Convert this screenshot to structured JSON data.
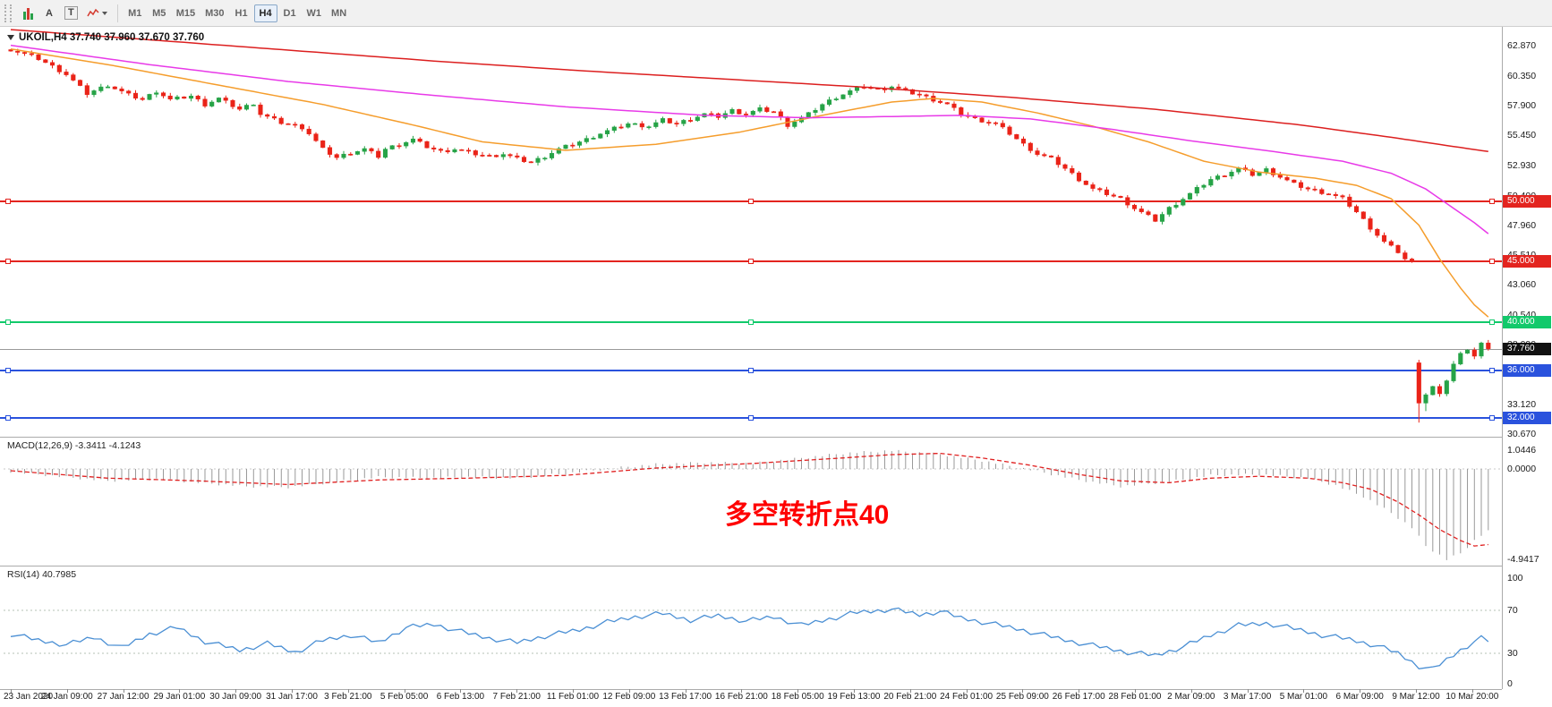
{
  "toolbar": {
    "tools": [
      {
        "name": "chart-type-button",
        "label": ""
      },
      {
        "name": "cursor-tool-button",
        "label": "A"
      },
      {
        "name": "text-tool-button",
        "label": "T"
      },
      {
        "name": "indicators-button",
        "label": ""
      }
    ],
    "timeframes": [
      "M1",
      "M5",
      "M15",
      "M30",
      "H1",
      "H4",
      "D1",
      "W1",
      "MN"
    ],
    "active_timeframe": "H4"
  },
  "chart_header": {
    "symbol_label": "UKOIL,H4 37.740 37.960 37.670 37.760"
  },
  "indicator_labels": {
    "macd": "MACD(12,26,9) -3.3411 -4.1243",
    "rsi": "RSI(14) 40.7985"
  },
  "annotation": {
    "text": "多空转折点40",
    "color": "#ff0000"
  },
  "colors": {
    "up": "#26a347",
    "down": "#ea2318",
    "ma_fast": "#f59d2c",
    "ma_mid": "#e83ae8",
    "ma_slow": "#dc1f1f",
    "macd_hist": "#9a9a9a",
    "macd_signal": "#e02020",
    "rsi": "#4a8fd4",
    "hline_red": "#e3241f",
    "hline_green": "#12c96b",
    "hline_blue": "#2a52dd",
    "price_badge_bg": "#111111"
  },
  "chart_data": {
    "type": "candlestick",
    "symbol": "UKOIL",
    "timeframe": "H4",
    "current_ohlc": {
      "open": 37.74,
      "high": 37.96,
      "low": 37.67,
      "close": 37.76
    },
    "bars": 214,
    "close_anchors": [
      [
        0,
        62.55
      ],
      [
        4,
        61.8
      ],
      [
        8,
        60.5
      ],
      [
        11,
        58.9
      ],
      [
        14,
        59.6
      ],
      [
        17,
        58.8
      ],
      [
        19,
        58.4
      ],
      [
        21,
        59.1
      ],
      [
        23,
        58.4
      ],
      [
        26,
        58.7
      ],
      [
        28,
        58.0
      ],
      [
        30,
        58.5
      ],
      [
        33,
        57.6
      ],
      [
        35,
        58.1
      ],
      [
        36,
        57.2
      ],
      [
        39,
        56.5
      ],
      [
        42,
        56.1
      ],
      [
        43,
        55.6
      ],
      [
        45,
        54.3
      ],
      [
        47,
        53.6
      ],
      [
        49,
        54.0
      ],
      [
        51,
        54.3
      ],
      [
        53,
        53.7
      ],
      [
        54,
        54.3
      ],
      [
        56,
        54.7
      ],
      [
        58,
        55.1
      ],
      [
        60,
        54.5
      ],
      [
        62,
        54.1
      ],
      [
        64,
        54.3
      ],
      [
        67,
        53.9
      ],
      [
        69,
        53.7
      ],
      [
        71,
        53.9
      ],
      [
        73,
        53.5
      ],
      [
        75,
        53.2
      ],
      [
        77,
        53.7
      ],
      [
        79,
        54.3
      ],
      [
        81,
        54.7
      ],
      [
        83,
        55.1
      ],
      [
        85,
        55.6
      ],
      [
        87,
        56.0
      ],
      [
        89,
        56.4
      ],
      [
        92,
        56.2
      ],
      [
        94,
        56.7
      ],
      [
        96,
        56.4
      ],
      [
        98,
        56.8
      ],
      [
        100,
        57.2
      ],
      [
        102,
        57.0
      ],
      [
        104,
        57.5
      ],
      [
        106,
        57.2
      ],
      [
        108,
        57.6
      ],
      [
        110,
        57.4
      ],
      [
        112,
        56.3
      ],
      [
        115,
        57.2
      ],
      [
        117,
        58.0
      ],
      [
        119,
        58.6
      ],
      [
        121,
        59.1
      ],
      [
        123,
        59.5
      ],
      [
        125,
        59.2
      ],
      [
        127,
        59.5
      ],
      [
        129,
        59.1
      ],
      [
        131,
        58.8
      ],
      [
        133,
        58.4
      ],
      [
        135,
        58.0
      ],
      [
        137,
        57.2
      ],
      [
        139,
        56.8
      ],
      [
        142,
        56.4
      ],
      [
        144,
        55.6
      ],
      [
        146,
        54.7
      ],
      [
        148,
        53.9
      ],
      [
        150,
        53.5
      ],
      [
        152,
        52.7
      ],
      [
        154,
        51.8
      ],
      [
        156,
        51.0
      ],
      [
        158,
        50.6
      ],
      [
        160,
        50.2
      ],
      [
        162,
        49.4
      ],
      [
        165,
        48.4
      ],
      [
        167,
        49.4
      ],
      [
        169,
        50.2
      ],
      [
        171,
        51.0
      ],
      [
        173,
        51.8
      ],
      [
        175,
        52.2
      ],
      [
        177,
        52.7
      ],
      [
        179,
        52.2
      ],
      [
        181,
        52.6
      ],
      [
        183,
        52.0
      ],
      [
        185,
        51.4
      ],
      [
        187,
        51.0
      ],
      [
        190,
        50.6
      ],
      [
        192,
        50.2
      ],
      [
        194,
        49.1
      ],
      [
        196,
        47.8
      ],
      [
        198,
        46.6
      ],
      [
        200,
        45.8
      ],
      [
        201,
        45.2
      ],
      [
        202,
        45.0
      ],
      [
        203,
        33.4
      ],
      [
        205,
        34.6
      ],
      [
        206,
        33.9
      ],
      [
        208,
        36.5
      ],
      [
        209,
        37.3
      ],
      [
        210,
        37.8
      ],
      [
        211,
        37.2
      ],
      [
        212,
        38.2
      ],
      [
        213,
        37.76
      ]
    ],
    "gap_opens": {
      "203": 36.6
    },
    "wick_low_overrides": {
      "203": 31.65,
      "204": 32.6
    },
    "moving_averages": [
      {
        "name": "ma-fast",
        "color_key": "ma_fast",
        "anchors": [
          [
            0,
            62.6
          ],
          [
            15,
            61.2
          ],
          [
            30,
            59.6
          ],
          [
            45,
            58.0
          ],
          [
            58,
            56.3
          ],
          [
            68,
            54.9
          ],
          [
            80,
            54.2
          ],
          [
            93,
            54.7
          ],
          [
            105,
            55.7
          ],
          [
            117,
            57.1
          ],
          [
            127,
            58.2
          ],
          [
            133,
            58.5
          ],
          [
            140,
            58.2
          ],
          [
            148,
            57.3
          ],
          [
            156,
            56.2
          ],
          [
            164,
            54.9
          ],
          [
            172,
            53.3
          ],
          [
            180,
            52.4
          ],
          [
            188,
            51.9
          ],
          [
            194,
            51.3
          ],
          [
            199,
            50.2
          ],
          [
            203,
            48.0
          ],
          [
            206,
            45.2
          ],
          [
            209,
            42.8
          ],
          [
            211,
            41.4
          ],
          [
            213,
            40.4
          ]
        ]
      },
      {
        "name": "ma-mid",
        "color_key": "ma_mid",
        "anchors": [
          [
            0,
            62.9
          ],
          [
            20,
            61.3
          ],
          [
            40,
            59.9
          ],
          [
            60,
            58.8
          ],
          [
            80,
            57.8
          ],
          [
            100,
            57.1
          ],
          [
            115,
            56.9
          ],
          [
            127,
            57.0
          ],
          [
            137,
            57.1
          ],
          [
            147,
            56.8
          ],
          [
            158,
            56.0
          ],
          [
            170,
            55.0
          ],
          [
            182,
            54.1
          ],
          [
            192,
            53.3
          ],
          [
            199,
            52.3
          ],
          [
            204,
            51.0
          ],
          [
            208,
            49.4
          ],
          [
            211,
            48.2
          ],
          [
            213,
            47.3
          ]
        ]
      },
      {
        "name": "ma-slow",
        "color_key": "ma_slow",
        "anchors": [
          [
            0,
            64.2
          ],
          [
            19,
            63.4
          ],
          [
            40,
            62.5
          ],
          [
            61,
            61.6
          ],
          [
            82,
            60.8
          ],
          [
            103,
            60.1
          ],
          [
            124,
            59.4
          ],
          [
            144,
            58.6
          ],
          [
            165,
            57.6
          ],
          [
            186,
            56.3
          ],
          [
            200,
            55.2
          ],
          [
            207,
            54.6
          ],
          [
            213,
            54.1
          ]
        ]
      }
    ],
    "horizontal_lines": [
      {
        "price": 50.0,
        "label": "50.000",
        "color_key": "hline_red"
      },
      {
        "price": 45.0,
        "label": "45.000",
        "color_key": "hline_red"
      },
      {
        "price": 40.0,
        "label": "40.000",
        "color_key": "hline_green"
      },
      {
        "price": 36.0,
        "label": "36.000",
        "color_key": "hline_blue"
      },
      {
        "price": 32.0,
        "label": "32.000",
        "color_key": "hline_blue"
      }
    ],
    "current_price": {
      "price": 37.76,
      "label": "37.760"
    },
    "price_axis_labels": [
      "62.870",
      "60.350",
      "57.900",
      "55.450",
      "52.930",
      "50.400",
      "47.960",
      "45.510",
      "43.060",
      "40.540",
      "38.090",
      "35.970",
      "33.120",
      "30.670"
    ],
    "time_axis_labels": [
      "23 Jan 2020",
      "24 Jan 09:00",
      "27 Jan 12:00",
      "29 Jan 01:00",
      "30 Jan 09:00",
      "31 Jan 17:00",
      "3 Feb 21:00",
      "5 Feb 05:00",
      "6 Feb 13:00",
      "7 Feb 21:00",
      "11 Feb 01:00",
      "12 Feb 09:00",
      "13 Feb 17:00",
      "16 Feb 21:00",
      "18 Feb 05:00",
      "19 Feb 13:00",
      "20 Feb 21:00",
      "24 Feb 01:00",
      "25 Feb 09:00",
      "26 Feb 17:00",
      "28 Feb 01:00",
      "2 Mar 09:00",
      "3 Mar 17:00",
      "5 Mar 01:00",
      "6 Mar 09:00",
      "9 Mar 12:00",
      "10 Mar 20:00"
    ],
    "macd": {
      "params": "12,26,9",
      "value": -3.3411,
      "signal_value": -4.1243,
      "axis_labels": [
        "1.0446",
        "0.0000",
        "-4.9417"
      ],
      "hist_anchors": [
        [
          0,
          -0.15
        ],
        [
          8,
          -0.45
        ],
        [
          14,
          -0.65
        ],
        [
          21,
          -0.55
        ],
        [
          27,
          -0.75
        ],
        [
          34,
          -0.95
        ],
        [
          40,
          -1.0
        ],
        [
          47,
          -0.7
        ],
        [
          53,
          -0.45
        ],
        [
          60,
          -0.5
        ],
        [
          66,
          -0.45
        ],
        [
          73,
          -0.5
        ],
        [
          80,
          -0.25
        ],
        [
          87,
          0.05
        ],
        [
          93,
          0.25
        ],
        [
          100,
          0.35
        ],
        [
          107,
          0.3
        ],
        [
          113,
          0.55
        ],
        [
          120,
          0.85
        ],
        [
          127,
          1.0
        ],
        [
          134,
          0.8
        ],
        [
          140,
          0.45
        ],
        [
          147,
          -0.05
        ],
        [
          154,
          -0.6
        ],
        [
          160,
          -0.95
        ],
        [
          167,
          -0.7
        ],
        [
          173,
          -0.35
        ],
        [
          180,
          -0.3
        ],
        [
          187,
          -0.5
        ],
        [
          191,
          -0.9
        ],
        [
          195,
          -1.5
        ],
        [
          199,
          -2.4
        ],
        [
          202,
          -3.2
        ],
        [
          204,
          -4.2
        ],
        [
          207,
          -4.94
        ],
        [
          209,
          -4.6
        ],
        [
          211,
          -3.9
        ],
        [
          213,
          -3.34
        ]
      ],
      "signal_anchors": [
        [
          0,
          -0.1
        ],
        [
          14,
          -0.5
        ],
        [
          27,
          -0.65
        ],
        [
          40,
          -0.85
        ],
        [
          53,
          -0.6
        ],
        [
          66,
          -0.5
        ],
        [
          80,
          -0.35
        ],
        [
          93,
          0.05
        ],
        [
          107,
          0.3
        ],
        [
          120,
          0.6
        ],
        [
          127,
          0.78
        ],
        [
          134,
          0.85
        ],
        [
          140,
          0.6
        ],
        [
          147,
          0.2
        ],
        [
          154,
          -0.3
        ],
        [
          160,
          -0.65
        ],
        [
          167,
          -0.75
        ],
        [
          173,
          -0.5
        ],
        [
          180,
          -0.4
        ],
        [
          187,
          -0.5
        ],
        [
          192,
          -0.75
        ],
        [
          196,
          -1.1
        ],
        [
          200,
          -1.8
        ],
        [
          203,
          -2.5
        ],
        [
          206,
          -3.3
        ],
        [
          209,
          -3.9
        ],
        [
          211,
          -4.2
        ],
        [
          213,
          -4.12
        ]
      ]
    },
    "rsi": {
      "period": 14,
      "value": 40.7985,
      "levels": [
        70,
        30
      ],
      "axis_labels": [
        "100",
        "70",
        "30",
        "0"
      ],
      "anchors": [
        [
          0,
          48
        ],
        [
          4,
          42
        ],
        [
          8,
          38
        ],
        [
          12,
          45
        ],
        [
          16,
          35
        ],
        [
          20,
          48
        ],
        [
          24,
          54
        ],
        [
          28,
          41
        ],
        [
          33,
          33
        ],
        [
          37,
          39
        ],
        [
          41,
          31
        ],
        [
          45,
          42
        ],
        [
          49,
          47
        ],
        [
          53,
          40
        ],
        [
          57,
          54
        ],
        [
          61,
          57
        ],
        [
          65,
          50
        ],
        [
          69,
          44
        ],
        [
          73,
          40
        ],
        [
          77,
          46
        ],
        [
          82,
          52
        ],
        [
          86,
          59
        ],
        [
          90,
          64
        ],
        [
          94,
          67
        ],
        [
          98,
          61
        ],
        [
          102,
          65
        ],
        [
          106,
          60
        ],
        [
          110,
          64
        ],
        [
          114,
          56
        ],
        [
          118,
          62
        ],
        [
          122,
          68
        ],
        [
          127,
          71
        ],
        [
          131,
          66
        ],
        [
          134,
          69
        ],
        [
          137,
          63
        ],
        [
          141,
          58
        ],
        [
          145,
          53
        ],
        [
          149,
          47
        ],
        [
          153,
          41
        ],
        [
          157,
          36
        ],
        [
          161,
          31
        ],
        [
          165,
          28
        ],
        [
          169,
          36
        ],
        [
          173,
          47
        ],
        [
          177,
          56
        ],
        [
          181,
          58
        ],
        [
          185,
          53
        ],
        [
          189,
          47
        ],
        [
          193,
          43
        ],
        [
          197,
          37
        ],
        [
          200,
          30
        ],
        [
          203,
          18
        ],
        [
          205,
          15
        ],
        [
          207,
          24
        ],
        [
          209,
          33
        ],
        [
          211,
          41
        ],
        [
          212,
          44
        ],
        [
          213,
          40.8
        ]
      ]
    }
  }
}
